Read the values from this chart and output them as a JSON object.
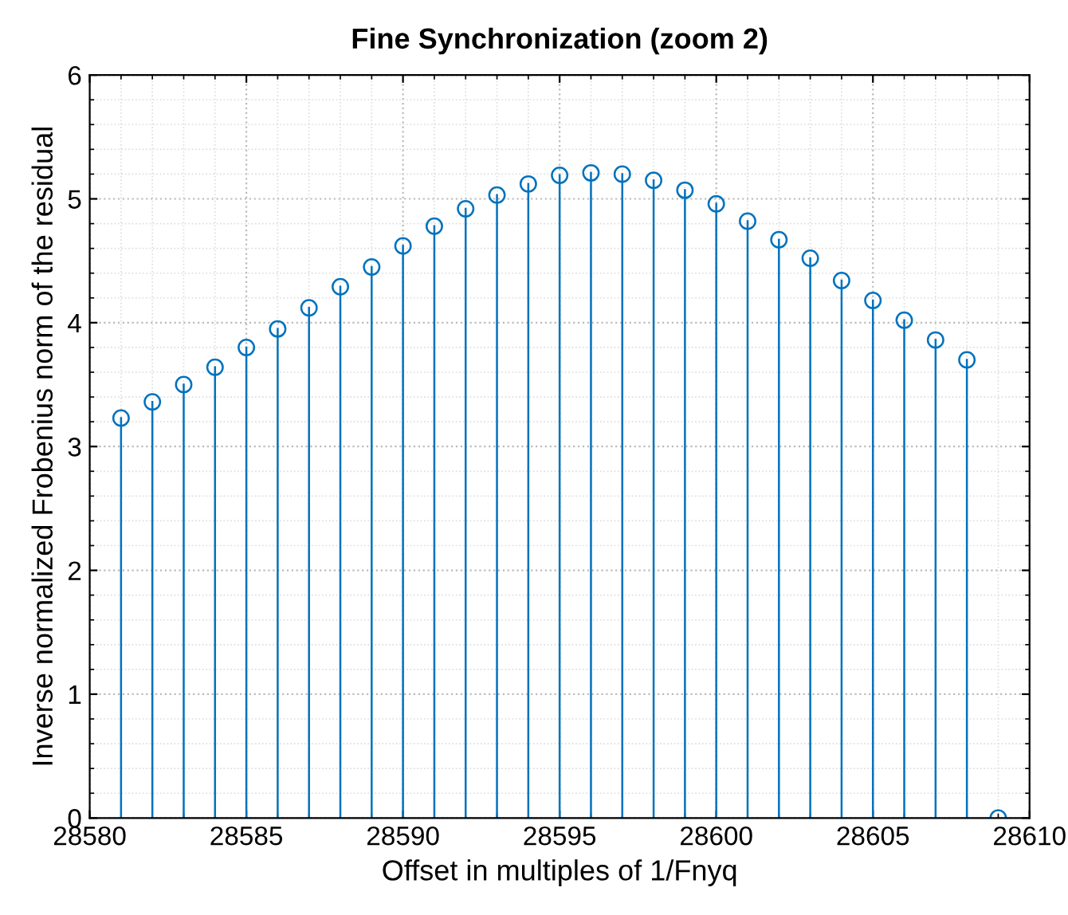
{
  "chart_data": {
    "type": "lollipop",
    "title": "Fine Synchronization (zoom 2)",
    "xlabel": "Offset in multiples of 1/Fnyq",
    "ylabel": "Inverse normalized Frobenius norm of the residual",
    "x": [
      28581,
      28582,
      28583,
      28584,
      28585,
      28586,
      28587,
      28588,
      28589,
      28590,
      28591,
      28592,
      28593,
      28594,
      28595,
      28596,
      28597,
      28598,
      28599,
      28600,
      28601,
      28602,
      28603,
      28604,
      28605,
      28606,
      28607,
      28608,
      28609
    ],
    "values": [
      3.23,
      3.36,
      3.5,
      3.64,
      3.8,
      3.95,
      4.12,
      4.29,
      4.45,
      4.62,
      4.78,
      4.92,
      5.03,
      5.12,
      5.19,
      5.21,
      5.2,
      5.15,
      5.07,
      4.96,
      4.82,
      4.67,
      4.52,
      4.34,
      4.18,
      4.02,
      3.86,
      3.7,
      0
    ],
    "color": "#0072bd",
    "marker": "circle",
    "grid": true,
    "xlim": [
      28580,
      28610
    ],
    "xticks": [
      28580,
      28585,
      28590,
      28595,
      28600,
      28605,
      28610
    ],
    "ylim": [
      0,
      6
    ],
    "yticks": [
      0,
      1,
      2,
      3,
      4,
      5,
      6
    ]
  }
}
